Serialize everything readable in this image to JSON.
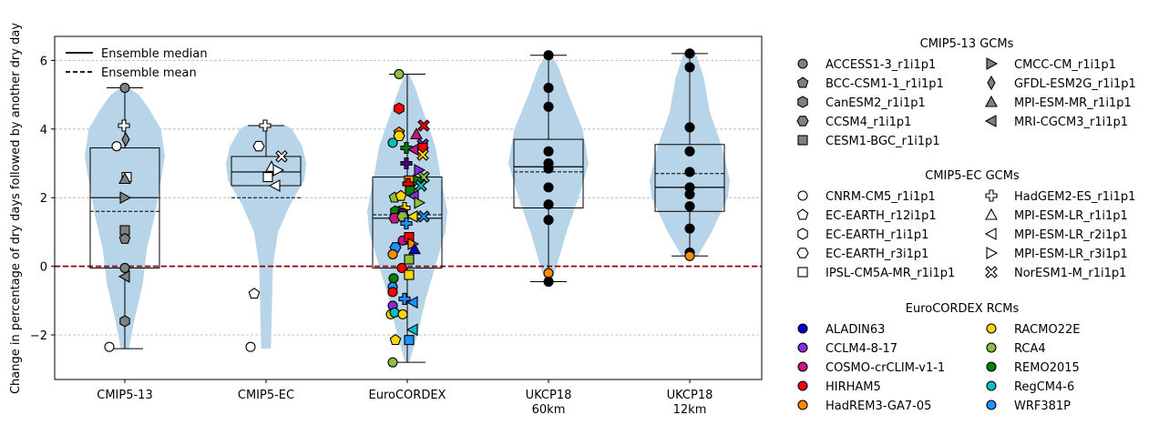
{
  "chart_data": {
    "type": "violin+box+scatter",
    "ylabel": "Change in percentage of dry days followed by another dry day",
    "ylim": [
      -3.3,
      6.7
    ],
    "yticks": [
      -2,
      0,
      2,
      4,
      6
    ],
    "categories": [
      "CMIP5-13",
      "CMIP5-EC",
      "EuroCORDEX",
      "UKCP18\n60km",
      "UKCP18\n12km"
    ],
    "grid": "horizontal dashed",
    "zero_line": {
      "y": 0,
      "color": "#8b0000",
      "style": "dashed"
    },
    "line_legend": {
      "placement": "upper-left",
      "items": [
        {
          "label": "Ensemble median",
          "style": "solid"
        },
        {
          "label": "Ensemble mean",
          "style": "dashed"
        }
      ]
    },
    "groups": [
      {
        "name": "CMIP5-13",
        "q1": -0.05,
        "median": 2.0,
        "mean": 1.6,
        "q3": 3.45,
        "wlo": -2.4,
        "whi": 5.2,
        "violin_lo": -2.4,
        "violin_hi": 5.2,
        "violin_profile": [
          [
            -2.4,
            0.1
          ],
          [
            -1.5,
            0.25
          ],
          [
            -0.5,
            0.45
          ],
          [
            0.5,
            0.55
          ],
          [
            1.5,
            0.75
          ],
          [
            2.5,
            0.9
          ],
          [
            3.2,
            1.0
          ],
          [
            4.0,
            0.9
          ],
          [
            4.6,
            0.6
          ],
          [
            5.0,
            0.35
          ],
          [
            5.2,
            0.1
          ]
        ]
      },
      {
        "name": "CMIP5-EC",
        "q1": 2.35,
        "median": 2.75,
        "mean": 2.0,
        "q3": 3.2,
        "wlo": 2.35,
        "whi": 4.1,
        "violin_lo": -2.4,
        "violin_hi": 4.1,
        "violin_profile": [
          [
            -2.4,
            0.12
          ],
          [
            -1.0,
            0.15
          ],
          [
            0.0,
            0.17
          ],
          [
            1.0,
            0.3
          ],
          [
            1.8,
            0.6
          ],
          [
            2.5,
            0.95
          ],
          [
            3.0,
            1.0
          ],
          [
            3.5,
            0.9
          ],
          [
            4.0,
            0.65
          ],
          [
            4.1,
            0.5
          ]
        ]
      },
      {
        "name": "EuroCORDEX",
        "q1": -0.05,
        "median": 1.4,
        "mean": 1.5,
        "q3": 2.6,
        "wlo": -2.8,
        "whi": 5.6,
        "violin_lo": -2.8,
        "violin_hi": 5.6,
        "violin_profile": [
          [
            -2.8,
            0.05
          ],
          [
            -2.0,
            0.25
          ],
          [
            -1.0,
            0.45
          ],
          [
            0.0,
            0.7
          ],
          [
            1.0,
            0.95
          ],
          [
            1.6,
            1.0
          ],
          [
            2.5,
            0.85
          ],
          [
            3.5,
            0.7
          ],
          [
            4.5,
            0.4
          ],
          [
            5.2,
            0.2
          ],
          [
            5.6,
            0.05
          ]
        ]
      },
      {
        "name": "UKCP18 60km",
        "q1": 1.7,
        "median": 2.9,
        "mean": 2.75,
        "q3": 3.7,
        "wlo": -0.45,
        "whi": 6.15,
        "violin_lo": -0.45,
        "violin_hi": 6.15,
        "violin_profile": [
          [
            -0.45,
            0.08
          ],
          [
            0.0,
            0.2
          ],
          [
            1.0,
            0.45
          ],
          [
            2.0,
            0.75
          ],
          [
            3.0,
            1.0
          ],
          [
            4.0,
            0.85
          ],
          [
            5.0,
            0.5
          ],
          [
            5.8,
            0.25
          ],
          [
            6.15,
            0.08
          ]
        ]
      },
      {
        "name": "UKCP18 12km",
        "q1": 1.6,
        "median": 2.3,
        "mean": 2.7,
        "q3": 3.55,
        "wlo": 0.3,
        "whi": 6.2,
        "violin_lo": 0.3,
        "violin_hi": 6.2,
        "violin_profile": [
          [
            0.3,
            0.2
          ],
          [
            1.0,
            0.55
          ],
          [
            2.0,
            0.95
          ],
          [
            2.5,
            1.0
          ],
          [
            3.5,
            0.8
          ],
          [
            4.5,
            0.5
          ],
          [
            5.5,
            0.35
          ],
          [
            6.2,
            0.15
          ]
        ]
      }
    ],
    "points": [
      {
        "g": 0,
        "dx": 0,
        "y": 5.2,
        "m": "o",
        "c": "#808080"
      },
      {
        "g": 0,
        "dx": -1,
        "y": 4.1,
        "m": "P",
        "c": "#ffffff"
      },
      {
        "g": 0,
        "dx": -9,
        "y": 3.5,
        "m": "o",
        "c": "#ffffff"
      },
      {
        "g": 0,
        "dx": 1,
        "y": 3.7,
        "m": "d",
        "c": "#808080"
      },
      {
        "g": 0,
        "dx": 2,
        "y": 2.6,
        "m": "s",
        "c": "#ffffff"
      },
      {
        "g": 0,
        "dx": 0,
        "y": 2.55,
        "m": "^",
        "c": "#808080"
      },
      {
        "g": 0,
        "dx": 0,
        "y": 2.0,
        "m": ">",
        "c": "#808080"
      },
      {
        "g": 0,
        "dx": 0,
        "y": 1.05,
        "m": "s",
        "c": "#808080"
      },
      {
        "g": 0,
        "dx": 0,
        "y": 0.8,
        "m": "p",
        "c": "#808080"
      },
      {
        "g": 0,
        "dx": 0,
        "y": -0.05,
        "m": "o",
        "c": "#808080"
      },
      {
        "g": 0,
        "dx": 0,
        "y": -0.3,
        "m": "<",
        "c": "#808080"
      },
      {
        "g": 0,
        "dx": 0,
        "y": -1.6,
        "m": "h",
        "c": "#808080"
      },
      {
        "g": 0,
        "dx": -17,
        "y": -2.35,
        "m": "o",
        "c": "#ffffff"
      },
      {
        "g": 1,
        "dx": -1,
        "y": 4.1,
        "m": "P",
        "c": "#ffffff"
      },
      {
        "g": 1,
        "dx": -8,
        "y": 3.5,
        "m": "H",
        "c": "#ffffff"
      },
      {
        "g": 1,
        "dx": 17,
        "y": 3.2,
        "m": "X",
        "c": "#ffffff"
      },
      {
        "g": 1,
        "dx": 6,
        "y": 2.9,
        "m": "^",
        "c": "#ffffff"
      },
      {
        "g": 1,
        "dx": 13,
        "y": 2.8,
        "m": ">",
        "c": "#ffffff"
      },
      {
        "g": 1,
        "dx": 2,
        "y": 2.6,
        "m": "s",
        "c": "#ffffff"
      },
      {
        "g": 1,
        "dx": 10,
        "y": 2.35,
        "m": "<",
        "c": "#ffffff"
      },
      {
        "g": 1,
        "dx": -13,
        "y": -0.8,
        "m": "p",
        "c": "#ffffff"
      },
      {
        "g": 1,
        "dx": -17,
        "y": -2.35,
        "m": "o",
        "c": "#ffffff"
      },
      {
        "g": 2,
        "dx": -9,
        "y": 5.6,
        "m": "o",
        "c": "#8fbf3f"
      },
      {
        "g": 2,
        "dx": -9,
        "y": 4.6,
        "m": "h",
        "c": "#ff0000"
      },
      {
        "g": 2,
        "dx": 18,
        "y": 4.1,
        "m": "X",
        "c": "#ff0000"
      },
      {
        "g": 2,
        "dx": -9,
        "y": 3.9,
        "m": "p",
        "c": "#ff8c00"
      },
      {
        "g": 2,
        "dx": -9,
        "y": 3.8,
        "m": "H",
        "c": "#ffd700"
      },
      {
        "g": 2,
        "dx": 10,
        "y": 3.85,
        "m": "^",
        "c": "#c71585"
      },
      {
        "g": 2,
        "dx": -16,
        "y": 3.6,
        "m": "o",
        "c": "#00bfc4"
      },
      {
        "g": 2,
        "dx": -1,
        "y": 3.45,
        "m": "P",
        "c": "#008000"
      },
      {
        "g": 2,
        "dx": 7,
        "y": 3.4,
        "m": "<",
        "c": "#c71585"
      },
      {
        "g": 2,
        "dx": 17,
        "y": 3.55,
        "m": "X",
        "c": "#8a2be2"
      },
      {
        "g": 2,
        "dx": 17,
        "y": 3.45,
        "m": "s",
        "c": "#ff0000"
      },
      {
        "g": 2,
        "dx": 17,
        "y": 3.25,
        "m": "X",
        "c": "#ffd700"
      },
      {
        "g": 2,
        "dx": -1,
        "y": 3.0,
        "m": "P",
        "c": "#4b0082"
      },
      {
        "g": 2,
        "dx": 13,
        "y": 2.8,
        "m": ">",
        "c": "#8a2be2"
      },
      {
        "g": 2,
        "dx": 18,
        "y": 2.6,
        "m": "X",
        "c": "#8fbf3f"
      },
      {
        "g": 2,
        "dx": 2,
        "y": 2.5,
        "m": "s",
        "c": "#ff8c00"
      },
      {
        "g": 2,
        "dx": 1,
        "y": 2.4,
        "m": "P",
        "c": "#ff0000"
      },
      {
        "g": 2,
        "dx": 12,
        "y": 2.5,
        "m": ">",
        "c": "#008000"
      },
      {
        "g": 2,
        "dx": 15,
        "y": 2.35,
        "m": "X",
        "c": "#00bfc4"
      },
      {
        "g": 2,
        "dx": 3,
        "y": 2.2,
        "m": "s",
        "c": "#008000"
      },
      {
        "g": 2,
        "dx": -14,
        "y": 2.0,
        "m": "p",
        "c": "#8fbf3f"
      },
      {
        "g": 2,
        "dx": -7,
        "y": 2.05,
        "m": "p",
        "c": "#ffd700"
      },
      {
        "g": 2,
        "dx": 7,
        "y": 2.05,
        "m": "<",
        "c": "#8a2be2"
      },
      {
        "g": 2,
        "dx": 13,
        "y": 1.85,
        "m": ">",
        "c": "#8fbf3f"
      },
      {
        "g": 2,
        "dx": -3,
        "y": 1.7,
        "m": "P",
        "c": "#ffd700"
      },
      {
        "g": 2,
        "dx": -10,
        "y": 1.6,
        "m": "o",
        "c": "#8fbf3f"
      },
      {
        "g": 2,
        "dx": -13,
        "y": 1.6,
        "m": "h",
        "c": "#008000"
      },
      {
        "g": 2,
        "dx": -5,
        "y": 1.55,
        "m": "h",
        "c": "#4b0082"
      },
      {
        "g": 2,
        "dx": -14,
        "y": 1.4,
        "m": "H",
        "c": "#c71585"
      },
      {
        "g": 2,
        "dx": -5,
        "y": 1.45,
        "m": "H",
        "c": "#8fbf3f"
      },
      {
        "g": 2,
        "dx": 6,
        "y": 1.45,
        "m": "<",
        "c": "#ffd700"
      },
      {
        "g": 2,
        "dx": 18,
        "y": 1.45,
        "m": "X",
        "c": "#1e90ff"
      },
      {
        "g": 2,
        "dx": -1,
        "y": 1.25,
        "m": "P",
        "c": "#1e90ff"
      },
      {
        "g": 2,
        "dx": -1,
        "y": 0.8,
        "m": "P",
        "c": "#008000"
      },
      {
        "g": 2,
        "dx": -5,
        "y": 0.75,
        "m": "o",
        "c": "#c71585"
      },
      {
        "g": 2,
        "dx": 2,
        "y": 0.85,
        "m": "s",
        "c": "#ff0000"
      },
      {
        "g": 2,
        "dx": 6,
        "y": 0.65,
        "m": ">",
        "c": "#ff8c00"
      },
      {
        "g": 2,
        "dx": -13,
        "y": 0.55,
        "m": "H",
        "c": "#1e90ff"
      },
      {
        "g": 2,
        "dx": 8,
        "y": 0.5,
        "m": "^",
        "c": "#0000cd"
      },
      {
        "g": 2,
        "dx": -16,
        "y": 0.35,
        "m": "o",
        "c": "#ff8c00"
      },
      {
        "g": 2,
        "dx": 2,
        "y": 0.2,
        "m": "s",
        "c": "#8fbf3f"
      },
      {
        "g": 2,
        "dx": -6,
        "y": -0.05,
        "m": "o",
        "c": "#ff0000"
      },
      {
        "g": 2,
        "dx": 2,
        "y": -0.25,
        "m": "s",
        "c": "#ffd700"
      },
      {
        "g": 2,
        "dx": -15,
        "y": -0.35,
        "m": "o",
        "c": "#008000"
      },
      {
        "g": 2,
        "dx": -16,
        "y": -0.6,
        "m": "o",
        "c": "#1e90ff"
      },
      {
        "g": 2,
        "dx": -16,
        "y": -0.75,
        "m": "o",
        "c": "#ff0000"
      },
      {
        "g": 2,
        "dx": -3,
        "y": -0.95,
        "m": "P",
        "c": "#1e90ff"
      },
      {
        "g": 2,
        "dx": 6,
        "y": -1.05,
        "m": "<",
        "c": "#1e90ff"
      },
      {
        "g": 2,
        "dx": -16,
        "y": -1.15,
        "m": "o",
        "c": "#8a2be2"
      },
      {
        "g": 2,
        "dx": -18,
        "y": -1.4,
        "m": "o",
        "c": "#ffd700"
      },
      {
        "g": 2,
        "dx": -14,
        "y": -1.35,
        "m": "o",
        "c": "#00bfc4"
      },
      {
        "g": 2,
        "dx": -5,
        "y": -1.4,
        "m": "o",
        "c": "#ffd700"
      },
      {
        "g": 2,
        "dx": 6,
        "y": -1.85,
        "m": "<",
        "c": "#00bfc4"
      },
      {
        "g": 2,
        "dx": 2,
        "y": -2.15,
        "m": "s",
        "c": "#1e90ff"
      },
      {
        "g": 2,
        "dx": -13,
        "y": -2.15,
        "m": "p",
        "c": "#ffd700"
      },
      {
        "g": 2,
        "dx": -16,
        "y": -2.8,
        "m": "o",
        "c": "#8fbf3f"
      },
      {
        "g": 3,
        "dx": 0,
        "y": 6.15,
        "m": "o",
        "c": "#000000"
      },
      {
        "g": 3,
        "dx": 0,
        "y": 5.2,
        "m": "o",
        "c": "#000000"
      },
      {
        "g": 3,
        "dx": 0,
        "y": 4.65,
        "m": "o",
        "c": "#000000"
      },
      {
        "g": 3,
        "dx": 0,
        "y": 3.35,
        "m": "o",
        "c": "#000000"
      },
      {
        "g": 3,
        "dx": 0,
        "y": 3.0,
        "m": "o",
        "c": "#000000"
      },
      {
        "g": 3,
        "dx": 0,
        "y": 2.85,
        "m": "o",
        "c": "#000000"
      },
      {
        "g": 3,
        "dx": 0,
        "y": 2.3,
        "m": "o",
        "c": "#000000"
      },
      {
        "g": 3,
        "dx": 0,
        "y": 1.8,
        "m": "o",
        "c": "#000000"
      },
      {
        "g": 3,
        "dx": 0,
        "y": 1.35,
        "m": "o",
        "c": "#000000"
      },
      {
        "g": 3,
        "dx": 0,
        "y": -0.2,
        "m": "o",
        "c": "#ff8c00"
      },
      {
        "g": 3,
        "dx": 0,
        "y": -0.45,
        "m": "o",
        "c": "#000000"
      },
      {
        "g": 4,
        "dx": 0,
        "y": 6.2,
        "m": "o",
        "c": "#000000"
      },
      {
        "g": 4,
        "dx": 0,
        "y": 5.8,
        "m": "o",
        "c": "#000000"
      },
      {
        "g": 4,
        "dx": 0,
        "y": 4.05,
        "m": "o",
        "c": "#000000"
      },
      {
        "g": 4,
        "dx": 0,
        "y": 3.35,
        "m": "o",
        "c": "#000000"
      },
      {
        "g": 4,
        "dx": 0,
        "y": 2.75,
        "m": "o",
        "c": "#000000"
      },
      {
        "g": 4,
        "dx": 0,
        "y": 2.3,
        "m": "o",
        "c": "#000000"
      },
      {
        "g": 4,
        "dx": 0,
        "y": 2.1,
        "m": "o",
        "c": "#000000"
      },
      {
        "g": 4,
        "dx": 0,
        "y": 1.75,
        "m": "o",
        "c": "#000000"
      },
      {
        "g": 4,
        "dx": 0,
        "y": 1.1,
        "m": "o",
        "c": "#000000"
      },
      {
        "g": 4,
        "dx": 0,
        "y": 0.4,
        "m": "o",
        "c": "#000000"
      },
      {
        "g": 4,
        "dx": 0,
        "y": 0.3,
        "m": "o",
        "c": "#ff8c00"
      }
    ]
  },
  "legend": {
    "sections": [
      {
        "title": "CMIP5-13 GCMs",
        "items": [
          {
            "label": "ACCESS1-3_r1i1p1",
            "m": "o",
            "c": "#808080"
          },
          {
            "label": "BCC-CSM1-1_r1i1p1",
            "m": "p",
            "c": "#808080"
          },
          {
            "label": "CanESM2_r1i1p1",
            "m": "h",
            "c": "#808080"
          },
          {
            "label": "CCSM4_r1i1p1",
            "m": "H",
            "c": "#808080"
          },
          {
            "label": "CESM1-BGC_r1i1p1",
            "m": "s",
            "c": "#808080"
          },
          {
            "label": "CMCC-CM_r1i1p1",
            "m": ">",
            "c": "#808080"
          },
          {
            "label": "GFDL-ESM2G_r1i1p1",
            "m": "d",
            "c": "#808080"
          },
          {
            "label": "MPI-ESM-MR_r1i1p1",
            "m": "^",
            "c": "#808080"
          },
          {
            "label": "MRI-CGCM3_r1i1p1",
            "m": "<",
            "c": "#808080"
          }
        ]
      },
      {
        "title": "CMIP5-EC GCMs",
        "items": [
          {
            "label": "CNRM-CM5_r1i1p1",
            "m": "o",
            "c": "#ffffff"
          },
          {
            "label": "EC-EARTH_r12i1p1",
            "m": "p",
            "c": "#ffffff"
          },
          {
            "label": "EC-EARTH_r1i1p1",
            "m": "h",
            "c": "#ffffff"
          },
          {
            "label": "EC-EARTH_r3i1p1",
            "m": "H",
            "c": "#ffffff"
          },
          {
            "label": "IPSL-CM5A-MR_r1i1p1",
            "m": "s",
            "c": "#ffffff"
          },
          {
            "label": "HadGEM2-ES_r1i1p1",
            "m": "P",
            "c": "#ffffff"
          },
          {
            "label": "MPI-ESM-LR_r1i1p1",
            "m": "^",
            "c": "#ffffff"
          },
          {
            "label": "MPI-ESM-LR_r2i1p1",
            "m": "<",
            "c": "#ffffff"
          },
          {
            "label": "MPI-ESM-LR_r3i1p1",
            "m": ">",
            "c": "#ffffff"
          },
          {
            "label": "NorESM1-M_r1i1p1",
            "m": "X",
            "c": "#ffffff"
          }
        ]
      },
      {
        "title": "EuroCORDEX RCMs",
        "items": [
          {
            "label": "ALADIN63",
            "m": "o",
            "c": "#0000cd"
          },
          {
            "label": "CCLM4-8-17",
            "m": "o",
            "c": "#8a2be2"
          },
          {
            "label": "COSMO-crCLIM-v1-1",
            "m": "o",
            "c": "#c71585"
          },
          {
            "label": "HIRHAM5",
            "m": "o",
            "c": "#ff0000"
          },
          {
            "label": "HadREM3-GA7-05",
            "m": "o",
            "c": "#ff8c00"
          },
          {
            "label": "RACMO22E",
            "m": "o",
            "c": "#ffd700"
          },
          {
            "label": "RCA4",
            "m": "o",
            "c": "#8fbf3f"
          },
          {
            "label": "REMO2015",
            "m": "o",
            "c": "#008000"
          },
          {
            "label": "RegCM4-6",
            "m": "o",
            "c": "#00bfc4"
          },
          {
            "label": "WRF381P",
            "m": "o",
            "c": "#1e90ff"
          }
        ]
      }
    ]
  },
  "colors": {
    "violin": "#b8d4e8",
    "zero_line": "#8b0000",
    "grid": "#b0b0b0"
  }
}
